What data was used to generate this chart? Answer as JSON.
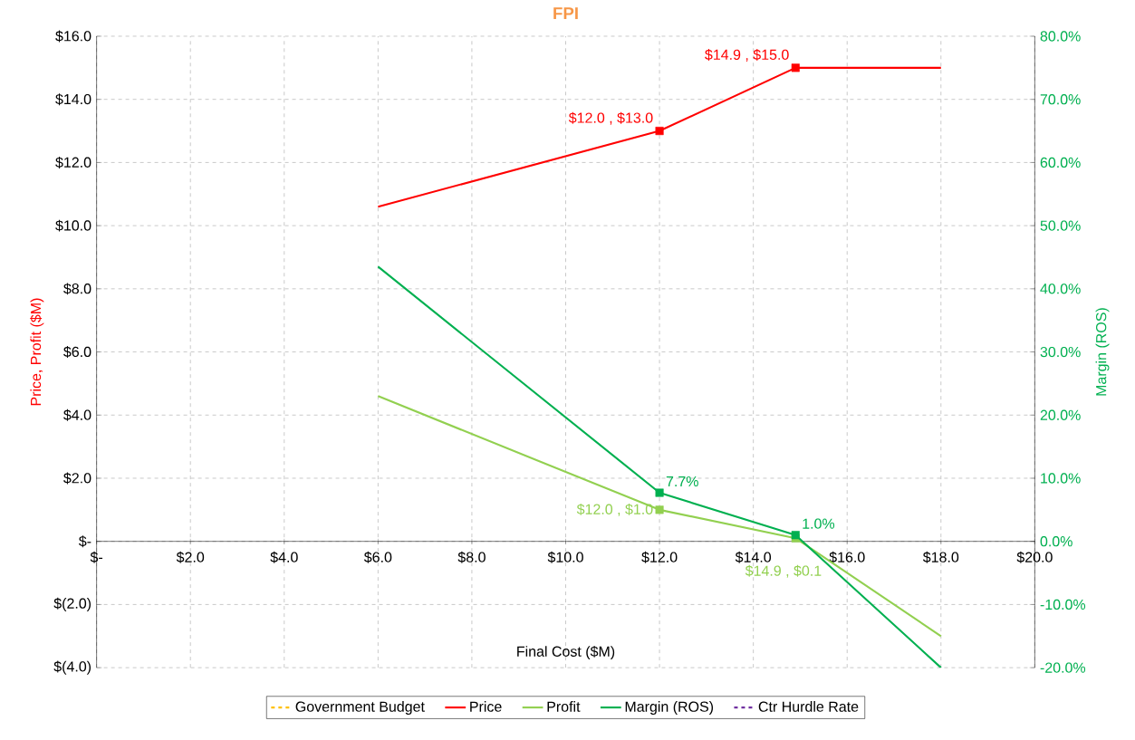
{
  "chart_data": {
    "type": "line",
    "title": "FPI",
    "xlabel": "Final Cost ($M)",
    "ylabel": "Price, Profit ($M)",
    "y2label": "Margin (ROS)",
    "x": [
      6,
      12,
      14.9,
      18
    ],
    "xlim": [
      0,
      20
    ],
    "xticks": [
      {
        "value": 0,
        "label": "$-"
      },
      {
        "value": 2,
        "label": "$2.0"
      },
      {
        "value": 4,
        "label": "$4.0"
      },
      {
        "value": 6,
        "label": "$6.0"
      },
      {
        "value": 8,
        "label": "$8.0"
      },
      {
        "value": 10,
        "label": "$10.0"
      },
      {
        "value": 12,
        "label": "$12.0"
      },
      {
        "value": 14,
        "label": "$14.0"
      },
      {
        "value": 16,
        "label": "$16.0"
      },
      {
        "value": 18,
        "label": "$18.0"
      },
      {
        "value": 20,
        "label": "$20.0"
      }
    ],
    "ylim": [
      -4,
      16
    ],
    "yticks": [
      {
        "value": -4,
        "label": "$(4.0)"
      },
      {
        "value": -2,
        "label": "$(2.0)"
      },
      {
        "value": 0,
        "label": "$-"
      },
      {
        "value": 2,
        "label": "$2.0"
      },
      {
        "value": 4,
        "label": "$4.0"
      },
      {
        "value": 6,
        "label": "$6.0"
      },
      {
        "value": 8,
        "label": "$8.0"
      },
      {
        "value": 10,
        "label": "$10.0"
      },
      {
        "value": 12,
        "label": "$12.0"
      },
      {
        "value": 14,
        "label": "$14.0"
      },
      {
        "value": 16,
        "label": "$16.0"
      }
    ],
    "y2lim": [
      -20,
      80
    ],
    "y2ticks": [
      {
        "value": -20,
        "label": "-20.0%"
      },
      {
        "value": -10,
        "label": "-10.0%"
      },
      {
        "value": 0,
        "label": "0.0%"
      },
      {
        "value": 10,
        "label": "10.0%"
      },
      {
        "value": 20,
        "label": "20.0%"
      },
      {
        "value": 30,
        "label": "30.0%"
      },
      {
        "value": 40,
        "label": "40.0%"
      },
      {
        "value": 50,
        "label": "50.0%"
      },
      {
        "value": 60,
        "label": "60.0%"
      },
      {
        "value": 70,
        "label": "70.0%"
      },
      {
        "value": 80,
        "label": "80.0%"
      }
    ],
    "grid": true,
    "legend": "bottom",
    "marker": "square",
    "series": [
      {
        "name": "Government Budget",
        "color": "#ffc000",
        "line_style": "dashed",
        "values": [
          null,
          null,
          null,
          null
        ]
      },
      {
        "name": "Price",
        "color": "#ff0000",
        "values": [
          10.6,
          13.0,
          15.0,
          15.0
        ],
        "value_labels": [
          null,
          "$12.0 , $13.0",
          "$14.9 , $15.0",
          null
        ]
      },
      {
        "name": "Profit",
        "color": "#92d050",
        "values": [
          4.6,
          1.0,
          0.1,
          -3.0
        ],
        "value_labels": [
          null,
          "$12.0 , $1.0",
          "$14.9 , $0.1",
          null
        ]
      },
      {
        "name": "Margin (ROS)",
        "color": "#00b050",
        "axis": "y2",
        "values": [
          43.5,
          7.7,
          1.0,
          -20.0
        ],
        "value_labels": [
          null,
          "7.7%",
          "1.0%",
          null
        ]
      },
      {
        "name": "Ctr Hurdle Rate",
        "color": "#7030a0",
        "line_style": "dashed",
        "axis": "y2",
        "values": [
          null,
          null,
          null,
          null
        ]
      }
    ]
  }
}
